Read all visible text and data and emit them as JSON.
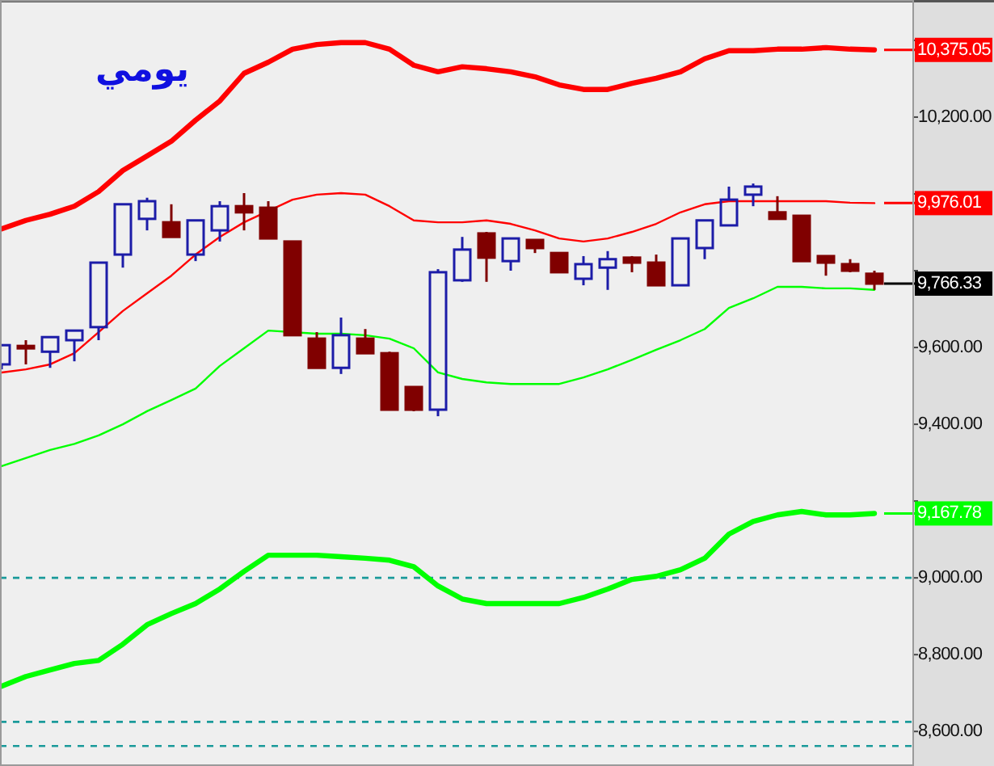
{
  "chart_data": {
    "type": "candlestick",
    "title": "يومي",
    "categories": [
      null,
      null,
      null,
      null,
      null,
      null,
      null,
      null,
      null,
      null,
      null,
      null,
      null,
      null,
      null,
      null,
      null,
      null,
      null,
      null,
      null,
      null,
      null,
      null,
      null,
      null,
      null,
      null,
      null,
      null,
      null,
      null,
      null,
      null,
      null,
      null,
      null
    ],
    "ohlc": [
      [
        9556,
        9606,
        9543,
        9606
      ],
      [
        9604,
        9619,
        9556,
        9598
      ],
      [
        9589,
        9627,
        9547,
        9627
      ],
      [
        9619,
        9644,
        9564,
        9644
      ],
      [
        9653,
        9821,
        9619,
        9821
      ],
      [
        9842,
        9973,
        9808,
        9973
      ],
      [
        9935,
        9990,
        9905,
        9981
      ],
      [
        9926,
        9973,
        9888,
        9888
      ],
      [
        9842,
        9931,
        9825,
        9931
      ],
      [
        9905,
        9981,
        9876,
        9968
      ],
      [
        9968,
        10002,
        9905,
        9952
      ],
      [
        9964,
        9981,
        9884,
        9884
      ],
      [
        9876,
        9876,
        9632,
        9632
      ],
      [
        9623,
        9640,
        9547,
        9547
      ],
      [
        9547,
        9678,
        9531,
        9632
      ],
      [
        9623,
        9648,
        9585,
        9585
      ],
      [
        9585,
        9589,
        9438,
        9438
      ],
      [
        9497,
        9497,
        9434,
        9438
      ],
      [
        9438,
        9804,
        9421,
        9796
      ],
      [
        9775,
        9888,
        9771,
        9855
      ],
      [
        9897,
        9901,
        9771,
        9834
      ],
      [
        9825,
        9884,
        9800,
        9884
      ],
      [
        9880,
        9880,
        9846,
        9859
      ],
      [
        9846,
        9846,
        9796,
        9796
      ],
      [
        9779,
        9838,
        9762,
        9817
      ],
      [
        9808,
        9851,
        9750,
        9830
      ],
      [
        9834,
        9838,
        9796,
        9821
      ],
      [
        9821,
        9842,
        9762,
        9762
      ],
      [
        9762,
        9884,
        9762,
        9884
      ],
      [
        9859,
        9931,
        9830,
        9931
      ],
      [
        9918,
        10019,
        9918,
        9985
      ],
      [
        9998,
        10027,
        9968,
        10019
      ],
      [
        9952,
        9994,
        9935,
        9935
      ],
      [
        9943,
        9943,
        9825,
        9825
      ],
      [
        9838,
        9838,
        9787,
        9821
      ],
      [
        9817,
        9830,
        9796,
        9800
      ],
      [
        9792,
        9800,
        9750,
        9766.33
      ]
    ],
    "colors": [
      "#1c1ca8",
      "#800000",
      "#1c1ca8",
      "#1c1ca8",
      "#1c1ca8",
      "#1c1ca8",
      "#1c1ca8",
      "#800000",
      "#1c1ca8",
      "#1c1ca8",
      "#800000",
      "#800000",
      "#800000",
      "#800000",
      "#1c1ca8",
      "#800000",
      "#800000",
      "#800000",
      "#1c1ca8",
      "#1c1ca8",
      "#800000",
      "#1c1ca8",
      "#800000",
      "#800000",
      "#1c1ca8",
      "#1c1ca8",
      "#800000",
      "#800000",
      "#1c1ca8",
      "#1c1ca8",
      "#1c1ca8",
      "#1c1ca8",
      "#800000",
      "#800000",
      "#800000",
      "#800000",
      "#800000"
    ],
    "value_labels": [
      null,
      null,
      null,
      null,
      null,
      null,
      null,
      null,
      null,
      null,
      null,
      null,
      null,
      null,
      null,
      null,
      null,
      null,
      null,
      null,
      null,
      null,
      null,
      null,
      null,
      null,
      null,
      null,
      null,
      null,
      null,
      null,
      null,
      null,
      null,
      null,
      "9,766.33"
    ],
    "series": [
      {
        "type": "line",
        "color": "#ff0000",
        "values": [
          9909,
          9931,
          9947,
          9968,
          10006,
          10061,
          10099,
          10137,
          10192,
          10242,
          10314,
          10343,
          10377,
          10389,
          10394,
          10394,
          10377,
          10335,
          10318,
          10331,
          10326,
          10318,
          10305,
          10284,
          10272,
          10272,
          10288,
          10301,
          10318,
          10352,
          10373,
          10373,
          10377,
          10377,
          10381,
          10377,
          10375.05
        ],
        "value_labels": [
          null,
          null,
          null,
          null,
          null,
          null,
          null,
          null,
          null,
          null,
          null,
          null,
          null,
          null,
          null,
          null,
          null,
          null,
          null,
          null,
          null,
          null,
          null,
          null,
          null,
          null,
          null,
          null,
          null,
          null,
          null,
          null,
          null,
          null,
          null,
          null,
          "10,375.05"
        ]
      },
      {
        "type": "line",
        "color": "#ff0000",
        "values": [
          9535,
          9543,
          9556,
          9585,
          9640,
          9695,
          9741,
          9787,
          9842,
          9888,
          9926,
          null,
          9985,
          9998,
          10002,
          9998,
          9968,
          9931,
          9926,
          9926,
          9931,
          9922,
          9905,
          9884,
          9876,
          9884,
          9901,
          9922,
          9952,
          9973,
          9981,
          9981,
          9981,
          9981,
          9981,
          9977,
          9976.01
        ],
        "value_labels": [
          null,
          null,
          null,
          null,
          null,
          null,
          null,
          null,
          null,
          null,
          null,
          null,
          null,
          null,
          null,
          null,
          null,
          null,
          null,
          null,
          null,
          null,
          null,
          null,
          null,
          null,
          null,
          null,
          null,
          null,
          null,
          null,
          null,
          null,
          null,
          null,
          "9,976.01"
        ]
      },
      {
        "type": "line",
        "color": "#00ff00",
        "values": [
          9291,
          9312,
          9333,
          9349,
          9371,
          9400,
          9434,
          9463,
          9493,
          9552,
          9598,
          9644,
          null,
          9636,
          9636,
          9632,
          9623,
          9598,
          9535,
          9518,
          9509,
          9505,
          9505,
          9505,
          9522,
          9543,
          9568,
          9594,
          9619,
          9648,
          9703,
          9728,
          9758,
          9758,
          9754,
          9754,
          9750
        ]
      },
      {
        "type": "line",
        "color": "#00ff00",
        "values": [
          8718,
          8743,
          8760,
          8777,
          8785,
          8827,
          8878,
          8907,
          8933,
          8971,
          9017,
          9059,
          9059,
          9059,
          9055,
          9051,
          9046,
          9029,
          8979,
          8945,
          8933,
          8933,
          8933,
          8933,
          8949,
          8971,
          8996,
          9004,
          9021,
          9051,
          9114,
          9147,
          9164,
          9173,
          9164,
          9164,
          9167.78
        ],
        "value_labels": [
          null,
          null,
          null,
          null,
          null,
          null,
          null,
          null,
          null,
          null,
          null,
          null,
          null,
          null,
          null,
          null,
          null,
          null,
          null,
          null,
          null,
          null,
          null,
          null,
          null,
          null,
          null,
          null,
          null,
          null,
          null,
          null,
          null,
          null,
          null,
          null,
          "9,167.78"
        ]
      }
    ],
    "ylim": [
      8510,
      10505
    ],
    "yticks": [
      {
        "value": 8600,
        "label": "8,600.00"
      },
      {
        "value": 8800,
        "label": "8,800.00"
      },
      {
        "value": 9000,
        "label": "9,000.00"
      },
      {
        "value": 9200,
        "label": null
      },
      {
        "value": 9400,
        "label": "9,400.00"
      },
      {
        "value": 9600,
        "label": "9,600.00"
      },
      {
        "value": 9800,
        "label": null
      },
      {
        "value": 10000,
        "label": null
      },
      {
        "value": 10200,
        "label": "10,200.00"
      },
      {
        "value": 10400,
        "label": null
      }
    ],
    "ref_lines": [
      {
        "axis": "y",
        "value": 9000,
        "color": "#1a9a9a",
        "line_style": "dashed"
      },
      {
        "axis": "y",
        "value": 8625,
        "color": "#1a9a9a",
        "line_style": "dashed"
      },
      {
        "axis": "y",
        "value": 8562,
        "color": "#1a9a9a",
        "line_style": "dashed"
      }
    ],
    "grid": false
  }
}
